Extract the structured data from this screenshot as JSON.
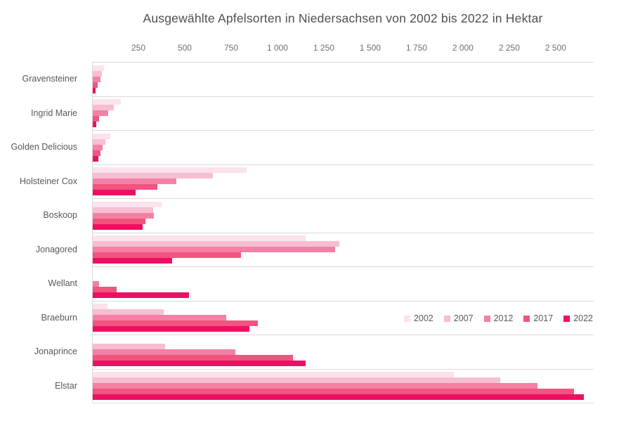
{
  "chart_data": {
    "type": "bar",
    "orientation": "horizontal",
    "title": "Ausgewählte Apfelsorten in Niedersachsen von 2002 bis 2022 in Hektar",
    "unit": "Hektar",
    "categories": [
      "Gravensteiner",
      "Ingrid Marie",
      "Golden Delicious",
      "Holsteiner Cox",
      "Boskoop",
      "Jonagored",
      "Wellant",
      "Braeburn",
      "Jonaprince",
      "Elstar"
    ],
    "series": [
      {
        "name": "2002",
        "color": "#fbe2ec",
        "values": [
          60,
          150,
          95,
          830,
          370,
          1150,
          null,
          80,
          null,
          1950
        ]
      },
      {
        "name": "2007",
        "color": "#f7bed3",
        "values": [
          50,
          115,
          70,
          650,
          325,
          1330,
          null,
          385,
          390,
          2200
        ]
      },
      {
        "name": "2012",
        "color": "#f480a6",
        "values": [
          40,
          85,
          55,
          450,
          330,
          1310,
          35,
          720,
          770,
          2400
        ]
      },
      {
        "name": "2017",
        "color": "#f2547f",
        "values": [
          25,
          35,
          40,
          350,
          285,
          800,
          130,
          890,
          1080,
          2600
        ]
      },
      {
        "name": "2022",
        "color": "#ee0f63",
        "values": [
          15,
          18,
          30,
          230,
          270,
          430,
          520,
          845,
          1150,
          2650
        ]
      }
    ],
    "x_axis": {
      "position": "top",
      "ticks": [
        250,
        500,
        750,
        1000,
        1250,
        1500,
        1750,
        2000,
        2250,
        2500
      ],
      "tick_labels": [
        "250",
        "500",
        "750",
        "1 000",
        "1 250",
        "1 500",
        "1 750",
        "2 000",
        "2 250",
        "2 500"
      ],
      "xlim": [
        0,
        2705
      ]
    },
    "legend": {
      "position": "inside-right",
      "entries": [
        "2002",
        "2007",
        "2012",
        "2017",
        "2022"
      ]
    },
    "grid": "horizontal-row-separators",
    "grid_color": "#d9d9d9",
    "text_color": "#595959"
  }
}
